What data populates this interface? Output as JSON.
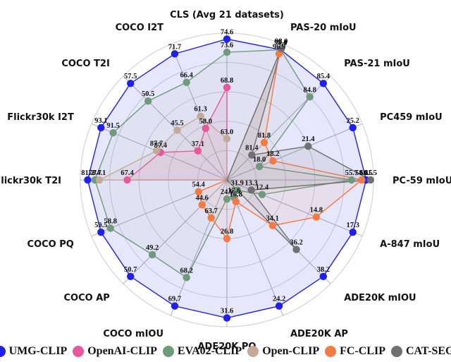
{
  "chart_data": {
    "type": "radar",
    "title": "",
    "axes": [
      "CLS (Avg 21 datasets)",
      "PAS-20 mIoU",
      "PAS-21 mIoU",
      "PC459 mIoU",
      "PC-59 mIoU",
      "A-847 mIoU",
      "ADE20K mIOU",
      "ADE20K AP",
      "ADE20K PQ",
      "COCO mIOU",
      "COCO AP",
      "COCO PQ",
      "Flickr30k T2I",
      "Flickr30k I2T",
      "COCO T2I",
      "COCO I2T"
    ],
    "series": [
      {
        "name": "UMG-CLIP",
        "color": "#1f1fef",
        "values": [
          74.6,
          97.1,
          85.4,
          25.2,
          60.5,
          17.3,
          38.2,
          24.2,
          31.6,
          69.7,
          50.7,
          59.5,
          81.2,
          93.1,
          57.5,
          71.7
        ],
        "r": [
          0.96,
          0.96,
          0.93,
          0.93,
          0.95,
          0.93,
          0.93,
          0.93,
          0.94,
          0.93,
          0.93,
          0.93,
          0.95,
          0.93,
          0.93,
          0.93
        ]
      },
      {
        "name": "OpenAI-CLIP",
        "color": "#e8579a",
        "values": [
          68.8,
          null,
          null,
          null,
          null,
          null,
          null,
          null,
          null,
          null,
          null,
          null,
          67.4,
          87.4,
          37.1,
          58.0
        ],
        "r": [
          0.63,
          0,
          0,
          0,
          0,
          0,
          0,
          0,
          0,
          0,
          0,
          0,
          0.68,
          0.49,
          0.28,
          0.38
        ]
      },
      {
        "name": "EVA02-CLIP",
        "color": "#6f9a7c",
        "values": [
          73.6,
          98.0,
          84.8,
          18.0,
          55.7,
          12.4,
          31.9,
          17.6,
          24.9,
          68.2,
          49.2,
          58.8,
          78.7,
          91.5,
          50.5,
          66.4
        ],
        "r": [
          0.87,
          0.96,
          0.8,
          0.24,
          0.85,
          0.26,
          0.1,
          0.13,
          0.13,
          0.72,
          0.72,
          0.86,
          0.9,
          0.84,
          0.76,
          0.72
        ]
      },
      {
        "name": "Open-CLIP",
        "color": "#c4a898",
        "values": [
          63.0,
          null,
          null,
          null,
          null,
          null,
          null,
          null,
          null,
          null,
          null,
          null,
          74.1,
          87.7,
          45.5,
          61.3
        ],
        "r": [
          0.28,
          0,
          0,
          0,
          0,
          0,
          0,
          0,
          0,
          0,
          0,
          0,
          0.87,
          0.52,
          0.48,
          0.47
        ]
      },
      {
        "name": "FC-CLIP",
        "color": "#f47a45",
        "values": [
          null,
          96.9,
          81.8,
          18.2,
          58.4,
          14.8,
          34.1,
          16.8,
          26.8,
          63.7,
          44.6,
          54.4,
          null,
          null,
          null,
          null
        ],
        "r": [
          0,
          0.93,
          0.36,
          0.34,
          0.92,
          0.66,
          0.44,
          0.16,
          0.4,
          0.28,
          0.24,
          0.21,
          0,
          0,
          0,
          0
        ]
      },
      {
        "name": "CAT-SEG",
        "color": "#707070",
        "values": [
          null,
          98.0,
          81.4,
          21.4,
          61.5,
          13.3,
          36.2,
          null,
          null,
          null,
          null,
          null,
          null,
          null,
          null,
          null
        ],
        "r": [
          0,
          0.97,
          0.24,
          0.6,
          0.98,
          0.18,
          0.67,
          0,
          0,
          0,
          0,
          0,
          0,
          0,
          0,
          0
        ]
      }
    ],
    "grid": true,
    "legend_position": "bottom",
    "rings": 4
  },
  "labels": {
    "title_axis": "CLS (Avg 21 datasets)"
  },
  "legend": [
    {
      "name": "UMG-CLIP",
      "color": "#1f1fef"
    },
    {
      "name": "OpenAI-CLIP",
      "color": "#e8579a"
    },
    {
      "name": "EVA02-CLIP",
      "color": "#6f9a7c"
    },
    {
      "name": "Open-CLIP",
      "color": "#c4a898"
    },
    {
      "name": "FC-CLIP",
      "color": "#f47a45"
    },
    {
      "name": "CAT-SEG",
      "color": "#707070"
    }
  ]
}
